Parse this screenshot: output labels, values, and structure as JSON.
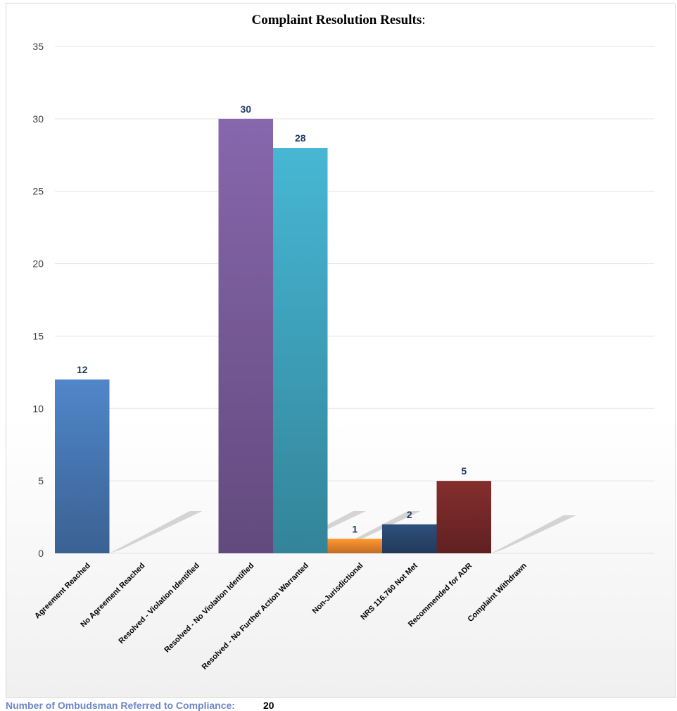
{
  "chart_data": {
    "type": "bar",
    "title": "Complaint Resolution Results",
    "title_suffix": ":",
    "categories": [
      "Agreement Reached",
      "No Agreement Reached",
      "Resolved - Violation Identified",
      "Resolved - No Violation Identified",
      "Resolved - No Further Action Warranted",
      "Non-Jurisdictional",
      "NRS 116.760 Not Met",
      "Recommended for ADR",
      "Complaint Withdrawn"
    ],
    "values": [
      12,
      0,
      0,
      30,
      28,
      1,
      2,
      5,
      0
    ],
    "data_labels": [
      "12",
      "",
      "",
      "30",
      "28",
      "1",
      "2",
      "5",
      ""
    ],
    "bar_colors": [
      "#4a7cbb",
      "#4a7cbb",
      "#4a7cbb",
      "#7d5fa0",
      "#42a9c4",
      "#f68c2e",
      "#2a4a74",
      "#7b2a2a",
      "#7b2a2a"
    ],
    "ylim": [
      0,
      35
    ],
    "yticks": [
      "0",
      "5",
      "10",
      "15",
      "20",
      "25",
      "30",
      "35"
    ],
    "xlabel": "",
    "ylabel": "",
    "grid": true,
    "legend": "none"
  },
  "footer": {
    "label": "Number of Ombudsman Referred to Compliance:",
    "value": "20"
  }
}
